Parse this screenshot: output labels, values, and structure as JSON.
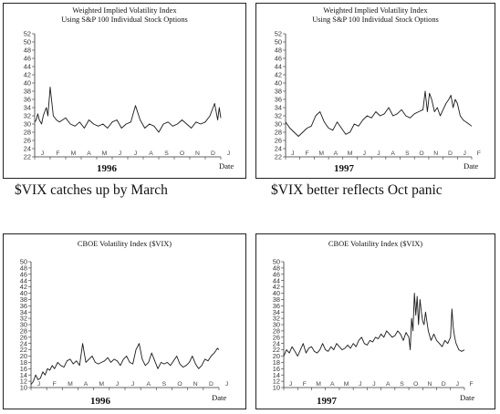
{
  "captions": [
    "$VIX catches up by March",
    "$VIX better reflects Oct panic"
  ],
  "line_color": "#1a1a1a",
  "chart_data": [
    {
      "type": "line",
      "title": "Weighted Implied Volatility Index",
      "subtitle": "Using S&P 100 Individual Stock Options",
      "year": "1996",
      "xlabel": "Date",
      "categories": [
        "J",
        "F",
        "M",
        "A",
        "M",
        "J",
        "J",
        "A",
        "S",
        "O",
        "N",
        "D",
        "J"
      ],
      "ylim": [
        22,
        52
      ],
      "yticks": [
        22,
        24,
        26,
        28,
        30,
        32,
        34,
        36,
        38,
        40,
        42,
        44,
        46,
        48,
        50,
        52
      ],
      "ytick_labels": [
        "22",
        "24",
        "26",
        "28",
        "30",
        "32",
        "34",
        "36",
        "38",
        "40",
        "42",
        "44",
        "46",
        "48",
        "50",
        "52"
      ],
      "series": [
        {
          "x": [
            0,
            0.1,
            0.2,
            0.3,
            0.45,
            0.55,
            0.65,
            0.75,
            0.85,
            1,
            1.2,
            1.4,
            1.6,
            1.8,
            2,
            2.3,
            2.6,
            2.9,
            3.2,
            3.5,
            3.8,
            4.1,
            4.4,
            4.7,
            5,
            5.3,
            5.6,
            5.9,
            6.2,
            6.5,
            6.8,
            7.1,
            7.4,
            7.7,
            8,
            8.3,
            8.6,
            8.9,
            9.2,
            9.5,
            9.8,
            10.1,
            10.4,
            10.7,
            11,
            11.3,
            11.6,
            11.8,
            11.9,
            12
          ],
          "values": [
            30.5,
            31,
            32.5,
            31,
            30,
            32,
            33,
            34,
            32,
            39,
            32,
            31,
            30.5,
            31,
            31.5,
            30,
            29.5,
            30.5,
            29,
            31,
            30,
            29.5,
            30,
            29,
            30.5,
            31,
            29,
            30,
            30.5,
            34.5,
            31,
            29,
            30,
            29.5,
            28,
            30,
            30.5,
            29.5,
            30,
            31,
            30,
            29,
            30.5,
            30,
            30.5,
            32,
            35,
            31,
            34,
            31.5
          ]
        }
      ]
    },
    {
      "type": "line",
      "title": "Weighted Implied Volatility Index",
      "subtitle": "Using S&P 100 Individual Stock Options",
      "year": "1997",
      "xlabel": "Date",
      "categories": [
        "J",
        "F",
        "M",
        "A",
        "M",
        "J",
        "J",
        "A",
        "S",
        "O",
        "N",
        "D",
        "J",
        "F"
      ],
      "ylim": [
        22,
        52
      ],
      "yticks": [
        22,
        24,
        26,
        28,
        30,
        32,
        34,
        36,
        38,
        40,
        42,
        44,
        46,
        48,
        50,
        52
      ],
      "ytick_labels": [
        "22",
        "24",
        "26",
        "28",
        "30",
        "32",
        "34",
        "36",
        "38",
        "40",
        "42",
        "44",
        "46",
        "48",
        "50",
        "52"
      ],
      "series": [
        {
          "x": [
            0,
            0.3,
            0.6,
            0.9,
            1.2,
            1.5,
            1.8,
            2.1,
            2.4,
            2.7,
            3,
            3.3,
            3.6,
            3.9,
            4.2,
            4.5,
            4.8,
            5.1,
            5.4,
            5.7,
            6,
            6.3,
            6.6,
            6.9,
            7.2,
            7.5,
            7.8,
            8.1,
            8.4,
            8.7,
            9,
            9.3,
            9.6,
            9.75,
            9.9,
            10.05,
            10.2,
            10.4,
            10.6,
            10.8,
            11,
            11.2,
            11.4,
            11.55,
            11.7,
            11.85,
            12,
            12.2,
            12.4,
            12.6,
            12.8,
            13
          ],
          "values": [
            30.5,
            29,
            28,
            27,
            28,
            29,
            29.5,
            32,
            33,
            30.5,
            29,
            28.5,
            30.5,
            29,
            27.5,
            28,
            30,
            29.5,
            31,
            32,
            31.5,
            33,
            32,
            32.5,
            34,
            32,
            32.5,
            33.5,
            32,
            31.5,
            32.5,
            33,
            33.5,
            38,
            33,
            37.5,
            36,
            33,
            34,
            32,
            33.5,
            35,
            36,
            37,
            34,
            36,
            35,
            32,
            31,
            30.5,
            30,
            29.5
          ]
        }
      ]
    },
    {
      "type": "line",
      "title": "CBOE Volatility Index ($VIX)",
      "year": "1996",
      "xlabel": "Date",
      "categories": [
        "J",
        "F",
        "M",
        "A",
        "M",
        "J",
        "J",
        "A",
        "S",
        "O",
        "N",
        "D",
        "J"
      ],
      "ylim": [
        10,
        50
      ],
      "yticks": [
        10,
        12,
        14,
        16,
        18,
        20,
        22,
        24,
        26,
        28,
        30,
        32,
        34,
        36,
        38,
        40,
        42,
        44,
        46,
        48,
        50
      ],
      "ytick_labels": [
        "10",
        "12",
        "14",
        "16",
        "18",
        "20",
        "22",
        "24",
        "26",
        "28",
        "30",
        "32",
        "34",
        "36",
        "38",
        "40",
        "42",
        "44",
        "46",
        "48",
        "50"
      ],
      "series": [
        {
          "x": [
            0,
            0.15,
            0.3,
            0.45,
            0.6,
            0.75,
            0.9,
            1.05,
            1.2,
            1.35,
            1.5,
            1.7,
            1.9,
            2.1,
            2.3,
            2.5,
            2.7,
            2.9,
            3.1,
            3.3,
            3.5,
            3.7,
            3.9,
            4.1,
            4.3,
            4.5,
            4.7,
            4.9,
            5.1,
            5.3,
            5.5,
            5.7,
            5.9,
            6.1,
            6.3,
            6.5,
            6.7,
            6.9,
            7.1,
            7.3,
            7.5,
            7.7,
            7.9,
            8.1,
            8.3,
            8.5,
            8.7,
            8.9,
            9.1,
            9.3,
            9.5,
            9.7,
            9.9,
            10.1,
            10.3,
            10.5,
            10.7,
            10.9,
            11.1,
            11.3,
            11.5,
            11.7,
            11.9,
            12
          ],
          "values": [
            11,
            12,
            14,
            12.5,
            13,
            15,
            14,
            16,
            15.5,
            17,
            16,
            18,
            17,
            16.5,
            18.5,
            19,
            17.5,
            18.5,
            17,
            24,
            18,
            19,
            20,
            18,
            17.5,
            18,
            18.5,
            19.5,
            18,
            19,
            18.5,
            17,
            19,
            20,
            18,
            17.5,
            22,
            24,
            19,
            17,
            18,
            21,
            18.5,
            16,
            18,
            17.5,
            18,
            17,
            18.5,
            20,
            17.5,
            16.5,
            17,
            18,
            20,
            17.5,
            16,
            17,
            19,
            18.5,
            20,
            21,
            22.5,
            22
          ]
        }
      ]
    },
    {
      "type": "line",
      "title": "CBOE Volatility Index ($VIX)",
      "year": "1997",
      "xlabel": "Date",
      "categories": [
        "J",
        "F",
        "M",
        "A",
        "M",
        "J",
        "J",
        "A",
        "S",
        "O",
        "N",
        "D",
        "J",
        "F"
      ],
      "ylim": [
        10,
        50
      ],
      "yticks": [
        10,
        12,
        14,
        16,
        18,
        20,
        22,
        24,
        26,
        28,
        30,
        32,
        34,
        36,
        38,
        40,
        42,
        44,
        46,
        48,
        50
      ],
      "ytick_labels": [
        "10",
        "12",
        "14",
        "16",
        "18",
        "20",
        "22",
        "24",
        "26",
        "28",
        "30",
        "32",
        "34",
        "36",
        "38",
        "40",
        "42",
        "44",
        "46",
        "48",
        "50"
      ],
      "series": [
        {
          "x": [
            0,
            0.2,
            0.4,
            0.6,
            0.8,
            1,
            1.2,
            1.4,
            1.6,
            1.8,
            2,
            2.2,
            2.4,
            2.6,
            2.8,
            3,
            3.2,
            3.4,
            3.6,
            3.8,
            4,
            4.2,
            4.4,
            4.6,
            4.8,
            5,
            5.2,
            5.4,
            5.6,
            5.8,
            6,
            6.2,
            6.4,
            6.6,
            6.8,
            7,
            7.2,
            7.4,
            7.6,
            7.8,
            8,
            8.2,
            8.4,
            8.6,
            8.8,
            9,
            9.1,
            9.2,
            9.3,
            9.4,
            9.5,
            9.6,
            9.7,
            9.8,
            9.9,
            10,
            10.1,
            10.2,
            10.4,
            10.6,
            10.8,
            11,
            11.2,
            11.4,
            11.6,
            11.8,
            12,
            12.1,
            12.2,
            12.3,
            12.4,
            12.6,
            12.8,
            13
          ],
          "values": [
            20,
            22,
            21,
            23,
            21.5,
            20,
            22,
            24,
            21,
            22.5,
            23,
            21.5,
            21,
            22,
            24,
            22,
            21.5,
            23,
            22,
            24,
            23,
            22,
            22.5,
            23.5,
            22.5,
            24,
            23,
            25,
            26,
            24,
            23.5,
            25,
            24.5,
            26,
            25.5,
            27,
            26,
            28,
            27,
            26,
            26.5,
            28,
            27,
            25,
            27.5,
            26,
            22,
            32,
            28,
            40,
            33,
            39,
            30,
            38,
            34,
            31,
            30,
            34,
            28,
            25,
            27,
            25,
            24,
            23,
            25,
            24,
            26,
            35,
            29,
            26,
            24,
            22,
            21.5,
            22
          ]
        }
      ]
    }
  ]
}
